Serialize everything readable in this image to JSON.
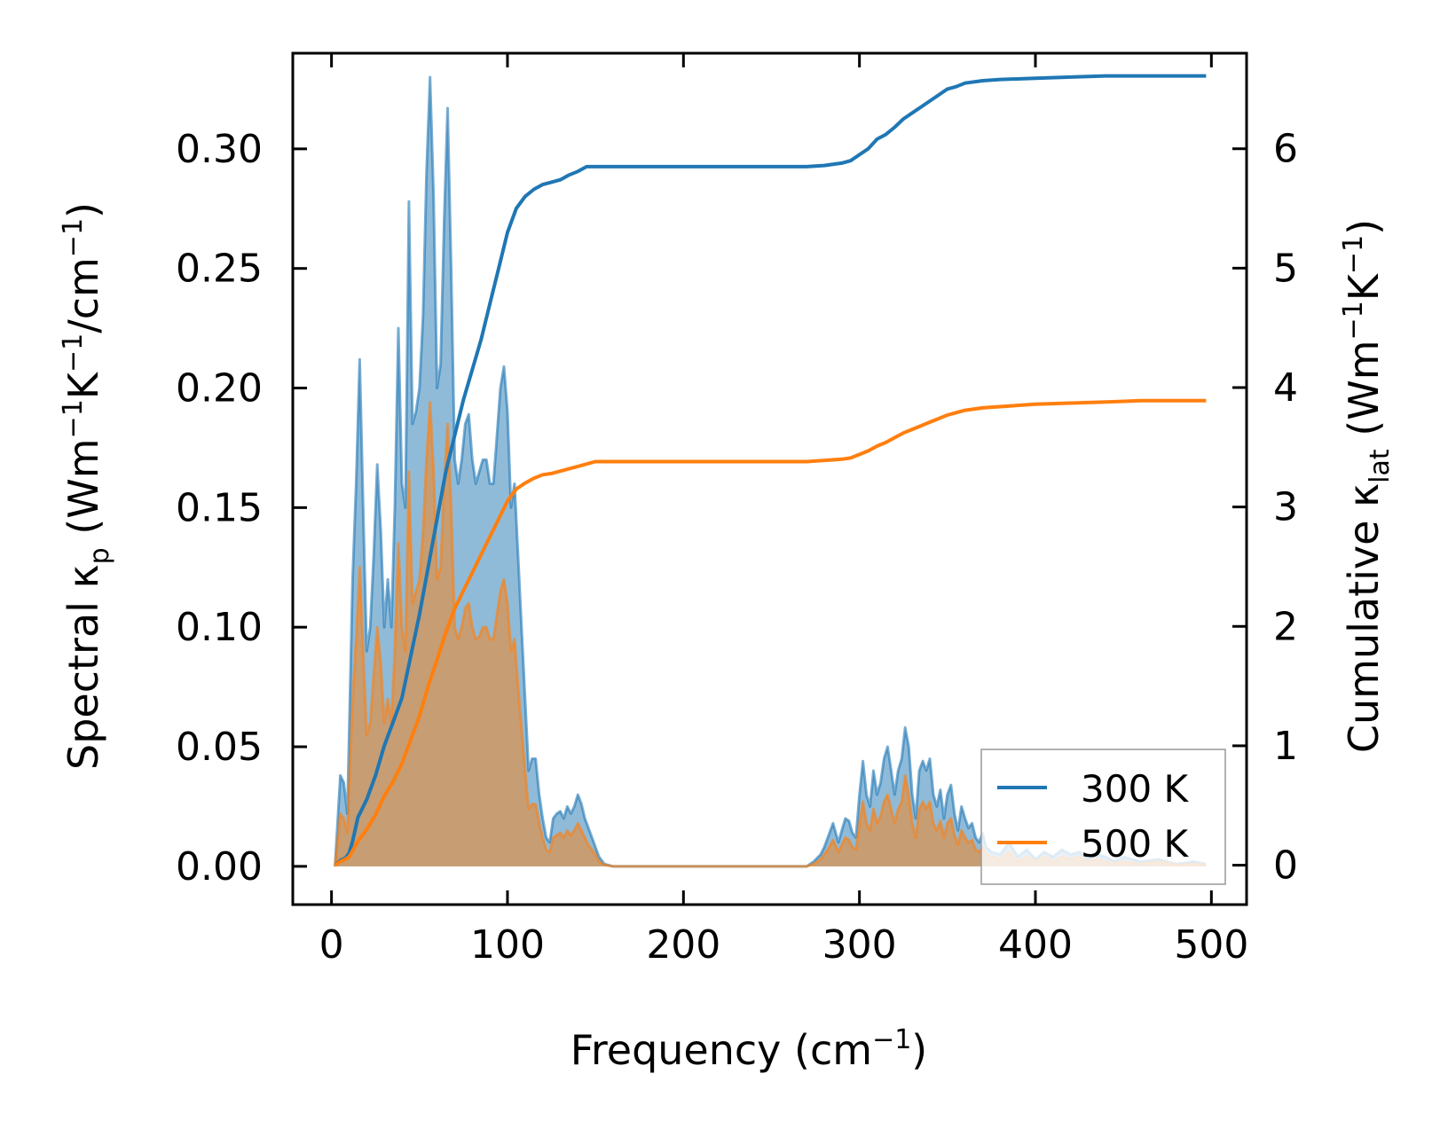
{
  "chart_data": {
    "type": "area",
    "title": "",
    "xlabel": {
      "base": "Frequency (cm",
      "sup": "−1",
      "end": ")"
    },
    "ylabel_left": {
      "t1": "Spectral κ",
      "sub": "p",
      "t2": " (Wm",
      "sup1": "−1",
      "t3": "K",
      "sup2": "−1",
      "t4": "/cm",
      "sup3": "−1",
      "t5": ")"
    },
    "ylabel_right": {
      "t1": "Cumulative κ",
      "sub": "lat",
      "t2": " (Wm",
      "sup1": "−1",
      "t3": "K",
      "sup2": "−1",
      "t4": ")"
    },
    "xlim": [
      -22,
      520
    ],
    "ylim_left": [
      -0.016,
      0.34
    ],
    "ylim_right": [
      -0.33,
      6.8
    ],
    "x_ticks": [
      0,
      100,
      200,
      300,
      400,
      500
    ],
    "x_tick_labels": [
      "0",
      "100",
      "200",
      "300",
      "400",
      "500"
    ],
    "y_left_ticks": [
      0.0,
      0.05,
      0.1,
      0.15,
      0.2,
      0.25,
      0.3
    ],
    "y_left_tick_labels": [
      "0.00",
      "0.05",
      "0.10",
      "0.15",
      "0.20",
      "0.25",
      "0.30"
    ],
    "y_right_ticks": [
      0,
      1,
      2,
      3,
      4,
      5,
      6
    ],
    "y_right_tick_labels": [
      "0",
      "1",
      "2",
      "3",
      "4",
      "5",
      "6"
    ],
    "legend_position": "lower-right",
    "colors": {
      "s300": "#1f77b4",
      "s500": "#ff7f0e"
    },
    "series": [
      {
        "name": "300 K",
        "spectral": {
          "x": [
            2,
            5,
            7,
            9,
            12,
            14,
            16,
            18,
            20,
            22,
            24,
            26,
            28,
            30,
            32,
            34,
            36,
            38,
            40,
            42,
            44,
            46,
            48,
            50,
            52,
            54,
            56,
            58,
            60,
            62,
            64,
            66,
            68,
            70,
            72,
            74,
            76,
            78,
            80,
            82,
            84,
            86,
            88,
            90,
            92,
            94,
            96,
            98,
            100,
            102,
            104,
            106,
            108,
            110,
            112,
            114,
            116,
            118,
            120,
            122,
            124,
            126,
            128,
            130,
            132,
            134,
            136,
            138,
            140,
            142,
            144,
            146,
            148,
            150,
            152,
            155,
            160,
            180,
            200,
            250,
            270,
            274,
            278,
            280,
            282,
            285,
            288,
            290,
            292,
            294,
            296,
            298,
            300,
            302,
            304,
            306,
            308,
            310,
            312,
            314,
            316,
            318,
            320,
            322,
            324,
            326,
            328,
            330,
            332,
            334,
            336,
            338,
            340,
            342,
            344,
            346,
            348,
            350,
            352,
            354,
            356,
            358,
            360,
            362,
            364,
            366,
            368,
            370,
            372,
            375,
            380,
            385,
            390,
            395,
            400,
            405,
            410,
            415,
            420,
            425,
            430,
            435,
            440,
            445,
            450,
            460,
            470,
            480,
            490,
            497
          ],
          "y": [
            0.0,
            0.038,
            0.035,
            0.022,
            0.12,
            0.16,
            0.212,
            0.15,
            0.09,
            0.1,
            0.13,
            0.168,
            0.14,
            0.1,
            0.12,
            0.1,
            0.15,
            0.225,
            0.16,
            0.15,
            0.278,
            0.185,
            0.19,
            0.2,
            0.23,
            0.29,
            0.33,
            0.28,
            0.2,
            0.21,
            0.27,
            0.317,
            0.25,
            0.17,
            0.16,
            0.17,
            0.185,
            0.189,
            0.17,
            0.16,
            0.165,
            0.17,
            0.17,
            0.16,
            0.16,
            0.18,
            0.2,
            0.209,
            0.19,
            0.15,
            0.16,
            0.13,
            0.1,
            0.07,
            0.04,
            0.045,
            0.045,
            0.03,
            0.02,
            0.012,
            0.01,
            0.02,
            0.022,
            0.023,
            0.02,
            0.025,
            0.022,
            0.025,
            0.03,
            0.026,
            0.02,
            0.016,
            0.012,
            0.008,
            0.004,
            0.001,
            0.0,
            0.0,
            0.0,
            0.0,
            0.0,
            0.002,
            0.005,
            0.008,
            0.012,
            0.018,
            0.01,
            0.015,
            0.02,
            0.019,
            0.014,
            0.012,
            0.03,
            0.044,
            0.03,
            0.025,
            0.04,
            0.03,
            0.035,
            0.045,
            0.05,
            0.04,
            0.03,
            0.04,
            0.045,
            0.058,
            0.05,
            0.03,
            0.02,
            0.04,
            0.044,
            0.04,
            0.045,
            0.03,
            0.025,
            0.032,
            0.02,
            0.03,
            0.034,
            0.022,
            0.015,
            0.025,
            0.02,
            0.016,
            0.018,
            0.012,
            0.01,
            0.014,
            0.008,
            0.006,
            0.005,
            0.01,
            0.004,
            0.007,
            0.003,
            0.006,
            0.004,
            0.007,
            0.005,
            0.006,
            0.003,
            0.005,
            0.004,
            0.002,
            0.004,
            0.002,
            0.003,
            0.001,
            0.002,
            0.001
          ]
        },
        "cumulative": {
          "x": [
            2,
            5,
            8,
            10,
            12,
            15,
            20,
            25,
            30,
            35,
            40,
            45,
            50,
            55,
            60,
            65,
            70,
            75,
            80,
            85,
            90,
            95,
            100,
            105,
            110,
            115,
            120,
            125,
            130,
            135,
            140,
            145,
            150,
            160,
            180,
            200,
            250,
            270,
            280,
            290,
            295,
            300,
            305,
            310,
            315,
            320,
            325,
            330,
            335,
            340,
            345,
            350,
            355,
            360,
            370,
            380,
            400,
            420,
            440,
            460,
            497
          ],
          "y": [
            0.0,
            0.04,
            0.06,
            0.1,
            0.2,
            0.4,
            0.55,
            0.75,
            1.0,
            1.2,
            1.4,
            1.75,
            2.1,
            2.5,
            2.9,
            3.3,
            3.6,
            3.9,
            4.15,
            4.4,
            4.7,
            5.0,
            5.3,
            5.5,
            5.6,
            5.66,
            5.7,
            5.72,
            5.74,
            5.78,
            5.81,
            5.85,
            5.85,
            5.85,
            5.85,
            5.85,
            5.85,
            5.85,
            5.86,
            5.88,
            5.9,
            5.95,
            6.0,
            6.08,
            6.12,
            6.18,
            6.25,
            6.3,
            6.35,
            6.4,
            6.45,
            6.5,
            6.52,
            6.55,
            6.57,
            6.58,
            6.59,
            6.6,
            6.61,
            6.61,
            6.61
          ]
        }
      },
      {
        "name": "500 K",
        "spectral": {
          "x": [
            2,
            5,
            7,
            9,
            12,
            14,
            16,
            18,
            20,
            22,
            24,
            26,
            28,
            30,
            32,
            34,
            36,
            38,
            40,
            42,
            44,
            46,
            48,
            50,
            52,
            54,
            56,
            58,
            60,
            62,
            64,
            66,
            68,
            70,
            72,
            74,
            76,
            78,
            80,
            82,
            84,
            86,
            88,
            90,
            92,
            94,
            96,
            98,
            100,
            102,
            104,
            106,
            108,
            110,
            112,
            114,
            116,
            118,
            120,
            122,
            124,
            126,
            128,
            130,
            132,
            134,
            136,
            138,
            140,
            142,
            144,
            146,
            148,
            150,
            152,
            155,
            160,
            180,
            200,
            250,
            270,
            274,
            278,
            280,
            282,
            285,
            288,
            290,
            292,
            294,
            296,
            298,
            300,
            302,
            304,
            306,
            308,
            310,
            312,
            314,
            316,
            318,
            320,
            322,
            324,
            326,
            328,
            330,
            332,
            334,
            336,
            338,
            340,
            342,
            344,
            346,
            348,
            350,
            352,
            354,
            356,
            358,
            360,
            362,
            364,
            366,
            368,
            370,
            372,
            375,
            380,
            385,
            390,
            395,
            400,
            405,
            410,
            415,
            420,
            425,
            430,
            435,
            440,
            445,
            450,
            460,
            470,
            480,
            490,
            497
          ],
          "y": [
            0.0,
            0.022,
            0.02,
            0.014,
            0.07,
            0.095,
            0.125,
            0.09,
            0.055,
            0.06,
            0.08,
            0.1,
            0.085,
            0.06,
            0.07,
            0.06,
            0.09,
            0.135,
            0.1,
            0.09,
            0.165,
            0.11,
            0.115,
            0.12,
            0.14,
            0.17,
            0.194,
            0.165,
            0.12,
            0.125,
            0.16,
            0.185,
            0.15,
            0.1,
            0.095,
            0.1,
            0.108,
            0.11,
            0.1,
            0.095,
            0.096,
            0.1,
            0.1,
            0.095,
            0.095,
            0.105,
            0.115,
            0.12,
            0.11,
            0.09,
            0.095,
            0.075,
            0.058,
            0.04,
            0.024,
            0.026,
            0.026,
            0.018,
            0.012,
            0.007,
            0.006,
            0.012,
            0.013,
            0.014,
            0.012,
            0.015,
            0.013,
            0.015,
            0.018,
            0.015,
            0.012,
            0.009,
            0.007,
            0.005,
            0.002,
            0.0006,
            0.0,
            0.0,
            0.0,
            0.0,
            0.0,
            0.001,
            0.003,
            0.005,
            0.007,
            0.011,
            0.006,
            0.009,
            0.012,
            0.011,
            0.008,
            0.007,
            0.018,
            0.027,
            0.018,
            0.015,
            0.024,
            0.018,
            0.021,
            0.027,
            0.03,
            0.024,
            0.018,
            0.024,
            0.027,
            0.038,
            0.03,
            0.018,
            0.012,
            0.024,
            0.027,
            0.024,
            0.027,
            0.018,
            0.015,
            0.019,
            0.012,
            0.018,
            0.02,
            0.013,
            0.009,
            0.015,
            0.012,
            0.01,
            0.011,
            0.007,
            0.006,
            0.008,
            0.005,
            0.004,
            0.003,
            0.006,
            0.002,
            0.004,
            0.002,
            0.004,
            0.002,
            0.004,
            0.003,
            0.004,
            0.002,
            0.003,
            0.002,
            0.001,
            0.002,
            0.001,
            0.002,
            0.0006,
            0.001,
            0.0006
          ]
        },
        "cumulative": {
          "x": [
            2,
            5,
            8,
            10,
            12,
            15,
            20,
            25,
            30,
            35,
            40,
            45,
            50,
            55,
            60,
            65,
            70,
            75,
            80,
            85,
            90,
            95,
            100,
            105,
            110,
            115,
            120,
            125,
            130,
            135,
            140,
            145,
            150,
            160,
            180,
            200,
            250,
            270,
            280,
            290,
            295,
            300,
            305,
            310,
            315,
            320,
            325,
            330,
            335,
            340,
            345,
            350,
            355,
            360,
            370,
            380,
            400,
            420,
            440,
            460,
            497
          ],
          "y": [
            0.0,
            0.03,
            0.05,
            0.07,
            0.12,
            0.2,
            0.3,
            0.42,
            0.58,
            0.7,
            0.85,
            1.05,
            1.25,
            1.5,
            1.72,
            1.95,
            2.15,
            2.3,
            2.45,
            2.6,
            2.75,
            2.9,
            3.05,
            3.15,
            3.2,
            3.24,
            3.27,
            3.28,
            3.3,
            3.32,
            3.34,
            3.36,
            3.38,
            3.38,
            3.38,
            3.38,
            3.38,
            3.38,
            3.39,
            3.4,
            3.41,
            3.44,
            3.47,
            3.51,
            3.54,
            3.58,
            3.62,
            3.65,
            3.68,
            3.71,
            3.74,
            3.77,
            3.79,
            3.81,
            3.83,
            3.84,
            3.86,
            3.87,
            3.88,
            3.89,
            3.89
          ]
        }
      }
    ]
  }
}
